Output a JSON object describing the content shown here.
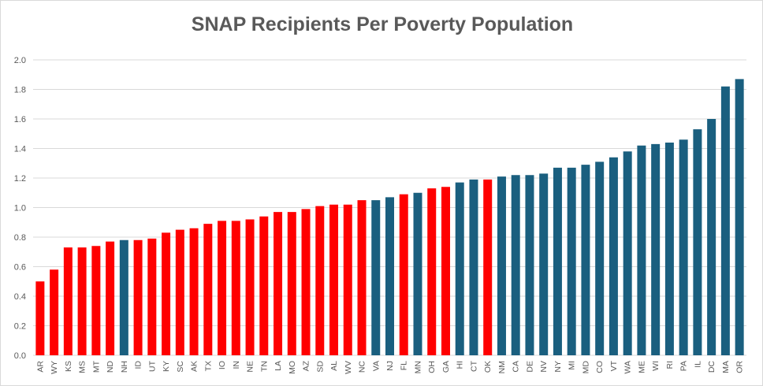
{
  "chart_data": {
    "type": "bar",
    "title": "SNAP Recipients Per Poverty Population",
    "xlabel": "",
    "ylabel": "",
    "ylim": [
      0,
      2.0
    ],
    "y_ticks": [
      "0.0",
      "0.2",
      "0.4",
      "0.6",
      "0.8",
      "1.0",
      "1.2",
      "1.4",
      "1.6",
      "1.8",
      "2.0"
    ],
    "grid": true,
    "legend": "none",
    "colors": {
      "red": "#ff0000",
      "blue": "#1a5f7f",
      "grid": "#d9d9d9",
      "text": "#595959"
    },
    "categories": [
      "AR",
      "WY",
      "KS",
      "MS",
      "MT",
      "ND",
      "NH",
      "ID",
      "UT",
      "KY",
      "SC",
      "AK",
      "TX",
      "IO",
      "IN",
      "NE",
      "TN",
      "LA",
      "MO",
      "AZ",
      "SD",
      "AL",
      "WV",
      "NC",
      "VA",
      "NJ",
      "FL",
      "MN",
      "OH",
      "GA",
      "HI",
      "CT",
      "OK",
      "NM",
      "CA",
      "DE",
      "NV",
      "NY",
      "MI",
      "MD",
      "CO",
      "VT",
      "WA",
      "ME",
      "WI",
      "RI",
      "PA",
      "IL",
      "DC",
      "MA",
      "OR"
    ],
    "values": [
      0.5,
      0.58,
      0.73,
      0.73,
      0.74,
      0.77,
      0.78,
      0.78,
      0.79,
      0.83,
      0.85,
      0.86,
      0.89,
      0.91,
      0.91,
      0.92,
      0.94,
      0.97,
      0.97,
      0.99,
      1.01,
      1.02,
      1.02,
      1.05,
      1.05,
      1.07,
      1.09,
      1.1,
      1.13,
      1.14,
      1.17,
      1.19,
      1.19,
      1.21,
      1.22,
      1.22,
      1.23,
      1.27,
      1.27,
      1.29,
      1.31,
      1.34,
      1.38,
      1.42,
      1.43,
      1.44,
      1.46,
      1.53,
      1.6,
      1.82,
      1.87
    ],
    "bar_colors": [
      "red",
      "red",
      "red",
      "red",
      "red",
      "red",
      "blue",
      "red",
      "red",
      "red",
      "red",
      "red",
      "red",
      "red",
      "red",
      "red",
      "red",
      "red",
      "red",
      "red",
      "red",
      "red",
      "red",
      "red",
      "blue",
      "blue",
      "red",
      "blue",
      "red",
      "red",
      "blue",
      "blue",
      "red",
      "blue",
      "blue",
      "blue",
      "blue",
      "blue",
      "blue",
      "blue",
      "blue",
      "blue",
      "blue",
      "blue",
      "blue",
      "blue",
      "blue",
      "blue",
      "blue",
      "blue",
      "blue"
    ]
  }
}
